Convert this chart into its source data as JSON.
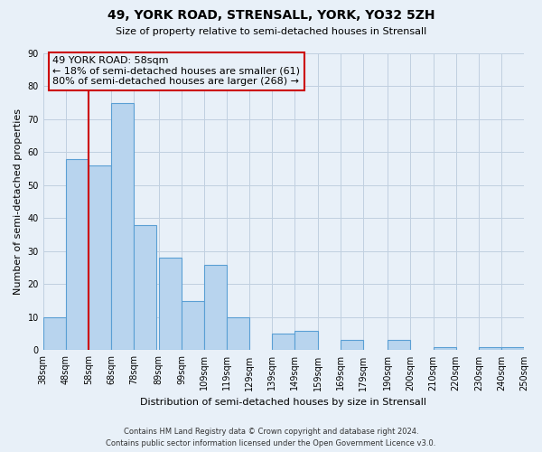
{
  "title": "49, YORK ROAD, STRENSALL, YORK, YO32 5ZH",
  "subtitle": "Size of property relative to semi-detached houses in Strensall",
  "xlabel": "Distribution of semi-detached houses by size in Strensall",
  "ylabel": "Number of semi-detached properties",
  "footer_line1": "Contains HM Land Registry data © Crown copyright and database right 2024.",
  "footer_line2": "Contains public sector information licensed under the Open Government Licence v3.0.",
  "annotation_title": "49 YORK ROAD: 58sqm",
  "annotation_line1": "← 18% of semi-detached houses are smaller (61)",
  "annotation_line2": "80% of semi-detached houses are larger (268) →",
  "property_size": 58,
  "bar_edges": [
    38,
    48,
    58,
    68,
    78,
    89,
    99,
    109,
    119,
    129,
    139,
    149,
    159,
    169,
    179,
    190,
    200,
    210,
    220,
    230,
    240
  ],
  "bar_heights": [
    10,
    58,
    56,
    75,
    38,
    28,
    15,
    26,
    10,
    0,
    5,
    6,
    0,
    3,
    0,
    3,
    0,
    1,
    0,
    1,
    1
  ],
  "bar_color": "#b8d4ee",
  "bar_edgecolor": "#5a9fd4",
  "property_line_color": "#cc0000",
  "annotation_box_edgecolor": "#cc0000",
  "grid_color": "#c0d0e0",
  "ylim": [
    0,
    90
  ],
  "yticks": [
    0,
    10,
    20,
    30,
    40,
    50,
    60,
    70,
    80,
    90
  ],
  "bg_color": "#e8f0f8",
  "plot_bg_color": "#e8f0f8"
}
